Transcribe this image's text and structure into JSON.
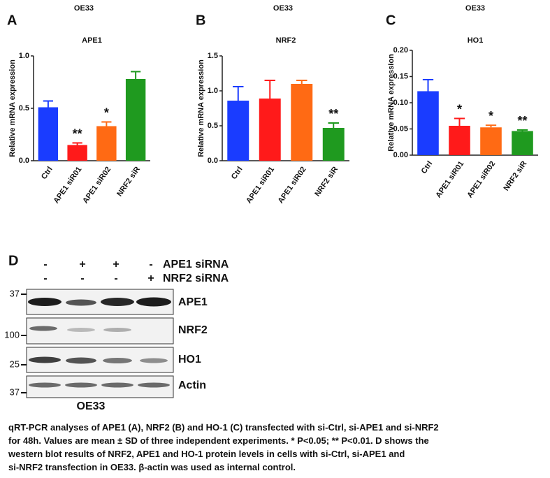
{
  "chart_data": [
    {
      "type": "bar",
      "panel": "A",
      "title": "OE33",
      "subtitle": "APE1",
      "y_label": "Relative mRNA expression",
      "categories": [
        "Ctrl",
        "APE1 siR01",
        "APE1 siR02",
        "NRF2 siR"
      ],
      "values": [
        0.51,
        0.15,
        0.33,
        0.78
      ],
      "errors": [
        0.06,
        0.02,
        0.04,
        0.07
      ],
      "significance": [
        null,
        "**",
        "*",
        null
      ],
      "colors": [
        "#1a3cff",
        "#ff1a1a",
        "#ff6a14",
        "#1f9a1f"
      ],
      "ylim": [
        0,
        1.0
      ],
      "yticks": [
        {
          "value": 0,
          "label": "0.0"
        },
        {
          "value": 0.5,
          "label": "0.5"
        },
        {
          "value": 1.0,
          "label": "1.0"
        }
      ]
    },
    {
      "type": "bar",
      "panel": "B",
      "title": "OE33",
      "subtitle": "NRF2",
      "y_label": "Relative mRNA expression",
      "categories": [
        "Ctrl",
        "APE1 siR01",
        "APE1 siR02",
        "NRF2 siR"
      ],
      "values": [
        0.86,
        0.89,
        1.1,
        0.47
      ],
      "errors": [
        0.2,
        0.26,
        0.05,
        0.07
      ],
      "significance": [
        null,
        null,
        null,
        "**"
      ],
      "colors": [
        "#1a3cff",
        "#ff1a1a",
        "#ff6a14",
        "#1f9a1f"
      ],
      "ylim": [
        0,
        1.5
      ],
      "yticks": [
        {
          "value": 0,
          "label": "0.0"
        },
        {
          "value": 0.5,
          "label": "0.5"
        },
        {
          "value": 1.0,
          "label": "1.0"
        },
        {
          "value": 1.5,
          "label": "1.5"
        }
      ]
    },
    {
      "type": "bar",
      "panel": "C",
      "title": "OE33",
      "subtitle": "HO1",
      "y_label": "Relative mRNA expression",
      "categories": [
        "Ctrl",
        "APE1 siR01",
        "APE1 siR02",
        "NRF2 siR"
      ],
      "values": [
        0.122,
        0.056,
        0.053,
        0.046
      ],
      "errors": [
        0.022,
        0.014,
        0.004,
        0.002
      ],
      "significance": [
        null,
        "*",
        "*",
        "**"
      ],
      "colors": [
        "#1a3cff",
        "#ff1a1a",
        "#ff6a14",
        "#1f9a1f"
      ],
      "ylim": [
        0,
        0.2
      ],
      "yticks": [
        {
          "value": 0,
          "label": "0.00"
        },
        {
          "value": 0.05,
          "label": "0.05"
        },
        {
          "value": 0.1,
          "label": "0.10"
        },
        {
          "value": 0.15,
          "label": "0.15"
        },
        {
          "value": 0.2,
          "label": "0.20"
        }
      ]
    }
  ],
  "panel_d": {
    "panel": "D",
    "treatments": [
      {
        "name": "APE1 siRNA",
        "signs": [
          "-",
          "+",
          "+",
          "-"
        ]
      },
      {
        "name": "NRF2 siRNA",
        "signs": [
          "-",
          "-",
          "-",
          "+"
        ]
      }
    ],
    "markers": [
      "37",
      "100",
      "25",
      "37"
    ],
    "blots": [
      "APE1",
      "NRF2",
      "HO1",
      "Actin"
    ],
    "cell_line": "OE33"
  },
  "caption": [
    "qRT-PCR analyses of APE1 (A), NRF2 (B) and HO-1 (C) transfected with si-Ctrl, si-APE1 and si-NRF2",
    " for 48h. Values are mean ± SD of three independent experiments. * P<0.05; ** P<0.01. D shows the",
    " western blot results of NRF2, APE1 and HO-1 protein levels in cells with si-Ctrl, si-APE1 and",
    "si-NRF2 transfection in OE33. β-actin was used as internal control."
  ]
}
